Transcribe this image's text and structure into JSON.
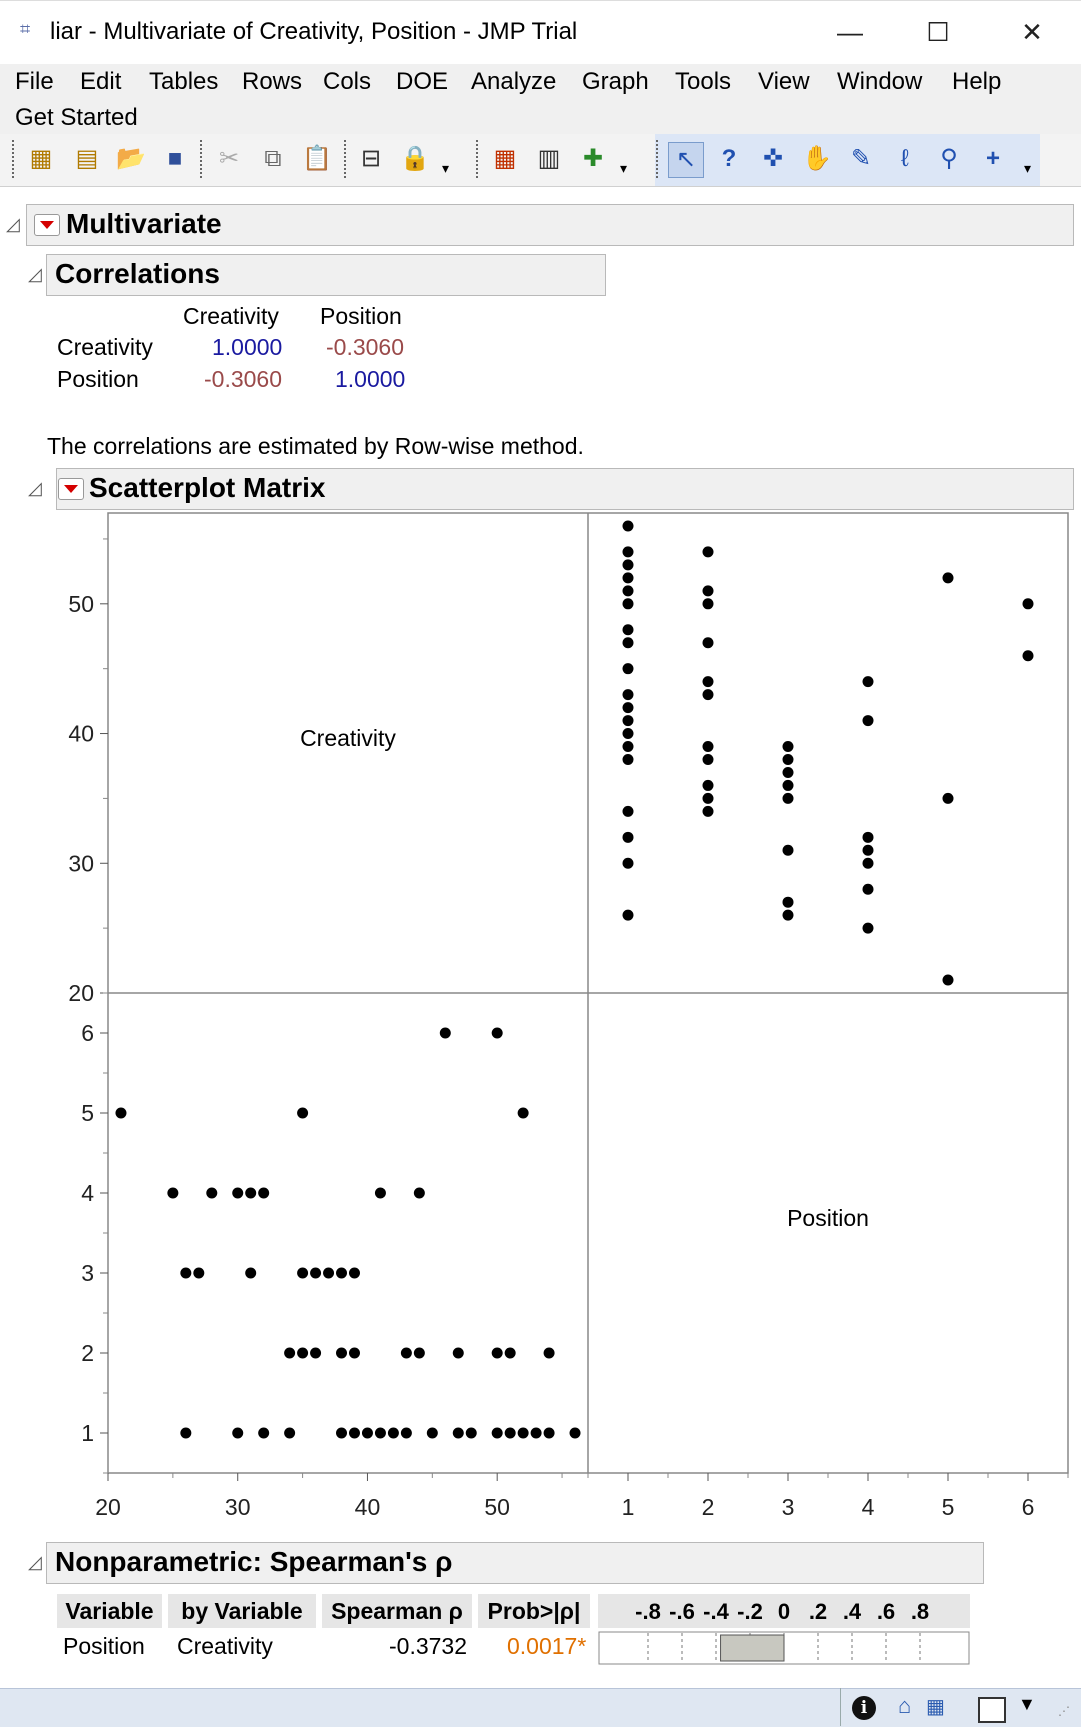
{
  "window": {
    "title": "liar - Multivariate of Creativity, Position - JMP Trial",
    "minimize": "—",
    "maximize": "☐",
    "close": "✕"
  },
  "menu": [
    "File",
    "Edit",
    "Tables",
    "Rows",
    "Cols",
    "DOE",
    "Analyze",
    "Graph",
    "Tools",
    "View",
    "Window",
    "Help",
    "Get Started"
  ],
  "multivariate": {
    "title": "Multivariate"
  },
  "correlations": {
    "title": "Correlations",
    "columns": [
      "Creativity",
      "Position"
    ],
    "rows": [
      {
        "label": "Creativity",
        "values": [
          "1.0000",
          "-0.3060"
        ]
      },
      {
        "label": "Position",
        "values": [
          "-0.3060",
          "1.0000"
        ]
      }
    ],
    "note": "The correlations are estimated by Row-wise method."
  },
  "scatter": {
    "title": "Scatterplot Matrix",
    "label_creativity": "Creativity",
    "label_position": "Position"
  },
  "chart_data": {
    "type": "scatter",
    "title": "Scatterplot Matrix",
    "variables": [
      "Creativity",
      "Position"
    ],
    "creativity_axis": {
      "range": [
        20,
        57
      ],
      "ticks": [
        "20",
        "30",
        "40",
        "50"
      ]
    },
    "position_axis": {
      "range": [
        0.5,
        6.5
      ],
      "ticks": [
        "1",
        "2",
        "3",
        "4",
        "5",
        "6"
      ]
    },
    "points": [
      {
        "creativity": 26,
        "position": 1
      },
      {
        "creativity": 30,
        "position": 1
      },
      {
        "creativity": 32,
        "position": 1
      },
      {
        "creativity": 34,
        "position": 1
      },
      {
        "creativity": 38,
        "position": 1
      },
      {
        "creativity": 39,
        "position": 1
      },
      {
        "creativity": 40,
        "position": 1
      },
      {
        "creativity": 41,
        "position": 1
      },
      {
        "creativity": 42,
        "position": 1
      },
      {
        "creativity": 43,
        "position": 1
      },
      {
        "creativity": 45,
        "position": 1
      },
      {
        "creativity": 47,
        "position": 1
      },
      {
        "creativity": 48,
        "position": 1
      },
      {
        "creativity": 50,
        "position": 1
      },
      {
        "creativity": 51,
        "position": 1
      },
      {
        "creativity": 52,
        "position": 1
      },
      {
        "creativity": 53,
        "position": 1
      },
      {
        "creativity": 54,
        "position": 1
      },
      {
        "creativity": 56,
        "position": 1
      },
      {
        "creativity": 34,
        "position": 2
      },
      {
        "creativity": 35,
        "position": 2
      },
      {
        "creativity": 36,
        "position": 2
      },
      {
        "creativity": 38,
        "position": 2
      },
      {
        "creativity": 39,
        "position": 2
      },
      {
        "creativity": 43,
        "position": 2
      },
      {
        "creativity": 44,
        "position": 2
      },
      {
        "creativity": 47,
        "position": 2
      },
      {
        "creativity": 50,
        "position": 2
      },
      {
        "creativity": 51,
        "position": 2
      },
      {
        "creativity": 54,
        "position": 2
      },
      {
        "creativity": 26,
        "position": 3
      },
      {
        "creativity": 27,
        "position": 3
      },
      {
        "creativity": 31,
        "position": 3
      },
      {
        "creativity": 35,
        "position": 3
      },
      {
        "creativity": 36,
        "position": 3
      },
      {
        "creativity": 37,
        "position": 3
      },
      {
        "creativity": 38,
        "position": 3
      },
      {
        "creativity": 39,
        "position": 3
      },
      {
        "creativity": 25,
        "position": 4
      },
      {
        "creativity": 28,
        "position": 4
      },
      {
        "creativity": 30,
        "position": 4
      },
      {
        "creativity": 31,
        "position": 4
      },
      {
        "creativity": 32,
        "position": 4
      },
      {
        "creativity": 41,
        "position": 4
      },
      {
        "creativity": 44,
        "position": 4
      },
      {
        "creativity": 21,
        "position": 5
      },
      {
        "creativity": 35,
        "position": 5
      },
      {
        "creativity": 52,
        "position": 5
      },
      {
        "creativity": 46,
        "position": 6
      },
      {
        "creativity": 50,
        "position": 6
      }
    ]
  },
  "spearman": {
    "title": "Nonparametric: Spearman's ρ",
    "headers": [
      "Variable",
      "by Variable",
      "Spearman ρ",
      "Prob>|ρ|"
    ],
    "bar_ticks": [
      "-.8",
      "-.6",
      "-.4",
      "-.2",
      "0",
      ".2",
      ".4",
      ".6",
      ".8"
    ],
    "row": {
      "variable": "Position",
      "by": "Creativity",
      "rho": "-0.3732",
      "prob": "0.0017*",
      "rho_value": -0.3732
    },
    "prob_color": "#e07000"
  },
  "toolbar_icons": [
    "new-data-table-icon",
    "new-script-icon",
    "open-icon",
    "save-icon",
    "cut-icon",
    "copy-icon",
    "paste-icon",
    "data-filter-icon",
    "lock-icon",
    "table-icon",
    "chart-icon",
    "add-icon",
    "arrow-icon",
    "help-icon",
    "crosshair-icon",
    "hand-icon",
    "brush-icon",
    "lasso-icon",
    "magnifier-icon",
    "plus-icon"
  ]
}
